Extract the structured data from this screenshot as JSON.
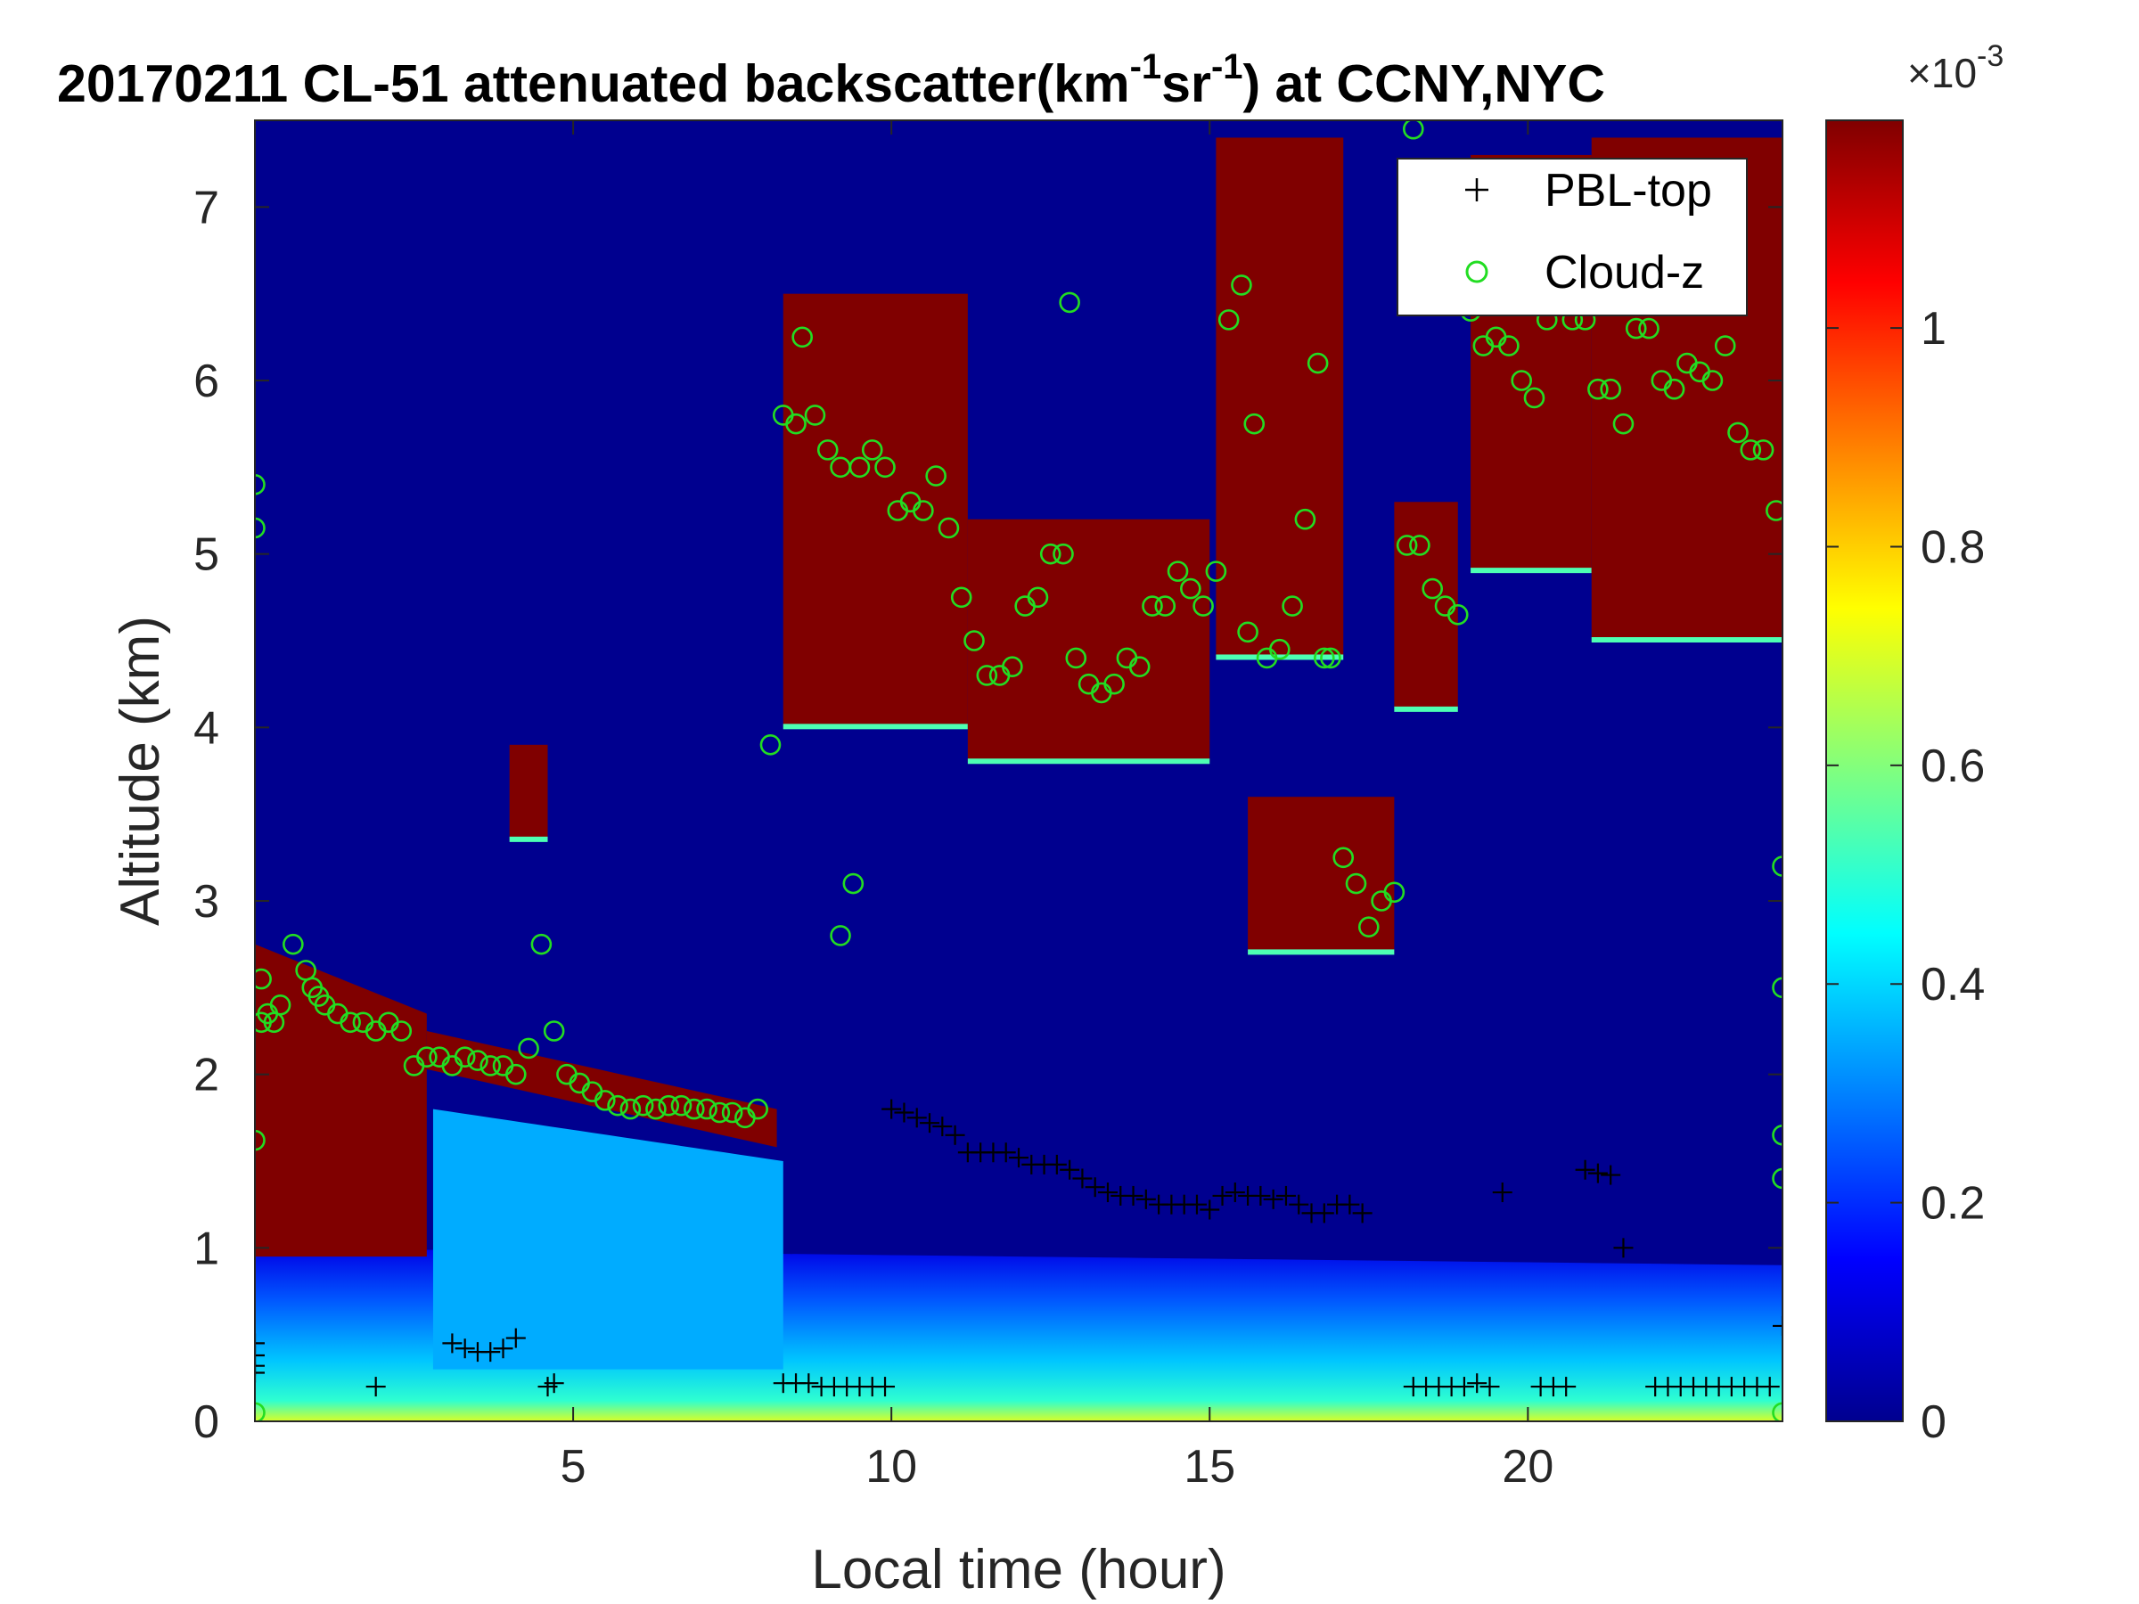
{
  "chart_data": {
    "type": "heatmap",
    "title": "20170211  CL-51 attenuated backscatter(km-1sr-1) at CCNY,NYC",
    "title_parts": {
      "prefix": "20170211  CL-51 attenuated backscatter(km",
      "exp1": "-1",
      "mid": "sr",
      "exp2": "-1",
      "suffix": ") at CCNY,NYC"
    },
    "xlabel": "Local time (hour)",
    "ylabel": "Altitude (km)",
    "xlim": [
      0,
      24
    ],
    "ylim": [
      0,
      7.5
    ],
    "xticks": [
      5,
      10,
      15,
      20
    ],
    "yticks": [
      0,
      1,
      2,
      3,
      4,
      5,
      6,
      7
    ],
    "colorbar": {
      "colormap": "jet",
      "range": [
        0,
        0.00119
      ],
      "tick_values": [
        0,
        0.2,
        0.4,
        0.6,
        0.8,
        1
      ],
      "tick_labels": [
        "0",
        "0.2",
        "0.4",
        "0.6",
        "0.8",
        "1"
      ],
      "multiplier_base": "×10",
      "multiplier_exp": "-3"
    },
    "legend": {
      "placement": "top-right",
      "entries": [
        {
          "label": "PBL-top",
          "marker": "+",
          "color": "#000000"
        },
        {
          "label": "Cloud-z",
          "marker": "o",
          "color": "#22dd22"
        }
      ]
    },
    "backscatter_regions": [
      {
        "kind": "surface_layer",
        "x": [
          0,
          24
        ],
        "top_km": [
          1.0,
          0.9
        ],
        "peak_level": 0.7
      },
      {
        "kind": "mixed_layer_aerosol",
        "x": [
          2.8,
          8.3
        ],
        "bottom_km": 0.3,
        "top_km": [
          1.8,
          1.5
        ],
        "level": 0.35
      },
      {
        "kind": "residual_layer",
        "x": [
          0,
          2.7
        ],
        "bottom_km": 0.95,
        "top_km": [
          2.75,
          2.35
        ],
        "level": 1.2
      },
      {
        "kind": "aerosol_layer_top",
        "x": [
          2.7,
          8.2
        ],
        "top_km": [
          2.25,
          1.8
        ],
        "level": 1.2
      },
      {
        "kind": "cloud",
        "x": [
          8.3,
          11.2
        ],
        "base_km": 4.0,
        "top_km": 6.5,
        "level": 1.2
      },
      {
        "kind": "cloud",
        "x": [
          11.2,
          15.0
        ],
        "base_km": 3.8,
        "top_km": 5.2,
        "level": 1.2
      },
      {
        "kind": "cloud",
        "x": [
          15.1,
          17.1
        ],
        "base_km": 4.4,
        "top_km": 7.4,
        "level": 1.2
      },
      {
        "kind": "cloud",
        "x": [
          15.6,
          17.9
        ],
        "base_km": 2.7,
        "top_km": 3.6,
        "level": 1.2
      },
      {
        "kind": "cloud",
        "x": [
          17.9,
          18.9
        ],
        "base_km": 4.1,
        "top_km": 5.3,
        "level": 1.2
      },
      {
        "kind": "cloud",
        "x": [
          19.1,
          21.0
        ],
        "base_km": 4.9,
        "top_km": 7.3,
        "level": 1.2
      },
      {
        "kind": "cloud",
        "x": [
          21.0,
          24.0
        ],
        "base_km": 4.5,
        "top_km": 7.4,
        "level": 1.2
      },
      {
        "kind": "cloud",
        "x": [
          4.0,
          4.6
        ],
        "base_km": 3.35,
        "top_km": 3.9,
        "level": 1.2
      }
    ],
    "series": [
      {
        "name": "PBL-top",
        "marker": "+",
        "x": [
          0.0,
          0.0,
          0.0,
          0.0,
          1.9,
          3.1,
          3.3,
          3.5,
          3.7,
          3.9,
          4.1,
          4.6,
          4.7,
          8.3,
          8.5,
          8.7,
          8.9,
          9.1,
          9.3,
          9.5,
          9.7,
          9.9,
          10.0,
          10.2,
          10.4,
          10.6,
          10.8,
          11.0,
          11.2,
          11.4,
          11.6,
          11.8,
          12.0,
          12.2,
          12.4,
          12.6,
          12.8,
          13.0,
          13.2,
          13.4,
          13.6,
          13.8,
          14.0,
          14.2,
          14.4,
          14.6,
          14.8,
          15.0,
          15.2,
          15.4,
          15.6,
          15.8,
          16.0,
          16.2,
          16.4,
          16.6,
          16.8,
          17.0,
          17.2,
          17.4,
          18.2,
          18.4,
          18.6,
          18.8,
          19.0,
          19.2,
          19.4,
          19.6,
          20.2,
          20.4,
          20.6,
          20.9,
          21.1,
          21.3,
          21.5,
          22.0,
          22.2,
          22.4,
          22.6,
          22.8,
          23.0,
          23.2,
          23.4,
          23.6,
          23.8,
          24.0
        ],
        "y": [
          0.45,
          0.38,
          0.32,
          0.28,
          0.2,
          0.45,
          0.42,
          0.4,
          0.4,
          0.42,
          0.48,
          0.2,
          0.22,
          0.22,
          0.22,
          0.22,
          0.2,
          0.2,
          0.2,
          0.2,
          0.2,
          0.2,
          1.8,
          1.78,
          1.75,
          1.72,
          1.7,
          1.65,
          1.55,
          1.55,
          1.55,
          1.55,
          1.52,
          1.48,
          1.48,
          1.48,
          1.45,
          1.4,
          1.35,
          1.32,
          1.3,
          1.3,
          1.28,
          1.25,
          1.25,
          1.25,
          1.25,
          1.22,
          1.3,
          1.32,
          1.3,
          1.3,
          1.28,
          1.3,
          1.25,
          1.2,
          1.2,
          1.25,
          1.25,
          1.2,
          0.2,
          0.2,
          0.2,
          0.2,
          0.2,
          0.22,
          0.2,
          1.32,
          0.2,
          0.2,
          0.2,
          1.45,
          1.43,
          1.42,
          1.0,
          0.2,
          0.2,
          0.2,
          0.2,
          0.2,
          0.2,
          0.2,
          0.2,
          0.2,
          0.2,
          0.55
        ]
      },
      {
        "name": "Cloud-z",
        "marker": "o",
        "x": [
          0.0,
          0.0,
          0.1,
          0.1,
          0.2,
          0.3,
          0.4,
          0.6,
          0.8,
          0.9,
          1.0,
          1.1,
          1.3,
          1.5,
          1.7,
          1.9,
          2.1,
          2.3,
          2.5,
          2.7,
          2.9,
          3.1,
          3.3,
          3.5,
          3.7,
          3.9,
          4.1,
          4.3,
          4.5,
          4.7,
          4.9,
          5.1,
          5.3,
          5.5,
          5.7,
          5.9,
          6.1,
          6.3,
          6.5,
          6.7,
          6.9,
          7.1,
          7.3,
          7.5,
          7.7,
          7.9,
          8.1,
          8.3,
          8.5,
          8.6,
          8.8,
          9.0,
          9.2,
          9.5,
          9.7,
          9.9,
          10.1,
          10.3,
          10.5,
          10.7,
          10.9,
          11.1,
          11.3,
          11.5,
          11.7,
          11.9,
          12.1,
          12.3,
          12.5,
          12.7,
          12.9,
          13.1,
          13.3,
          13.5,
          13.7,
          13.9,
          14.1,
          14.3,
          14.5,
          14.7,
          14.9,
          15.1,
          15.3,
          15.5,
          15.7,
          15.9,
          16.1,
          16.3,
          16.5,
          16.7,
          16.9,
          17.1,
          17.3,
          17.5,
          17.7,
          17.9,
          18.1,
          18.3,
          18.5,
          18.7,
          18.9,
          19.1,
          19.3,
          19.5,
          19.7,
          19.9,
          20.1,
          20.3,
          20.5,
          20.7,
          20.9,
          21.1,
          21.3,
          21.5,
          21.7,
          21.9,
          22.1,
          22.3,
          22.5,
          22.7,
          22.9,
          23.1,
          23.3,
          23.5,
          23.7,
          23.9,
          9.2,
          9.4,
          12.8,
          15.6,
          16.8,
          18.2,
          0.0,
          0.0,
          24.0,
          24.0,
          24.0,
          24.0,
          24.0
        ],
        "y": [
          5.4,
          5.15,
          2.55,
          2.3,
          2.35,
          2.3,
          2.4,
          2.75,
          2.6,
          2.5,
          2.45,
          2.4,
          2.35,
          2.3,
          2.3,
          2.25,
          2.3,
          2.25,
          2.05,
          2.1,
          2.1,
          2.05,
          2.1,
          2.08,
          2.05,
          2.05,
          2.0,
          2.15,
          2.75,
          2.25,
          2.0,
          1.95,
          1.9,
          1.85,
          1.82,
          1.8,
          1.82,
          1.8,
          1.82,
          1.82,
          1.8,
          1.8,
          1.78,
          1.78,
          1.75,
          1.8,
          3.9,
          5.8,
          5.75,
          6.25,
          5.8,
          5.6,
          5.5,
          5.5,
          5.6,
          5.5,
          5.25,
          5.3,
          5.25,
          5.45,
          5.15,
          4.75,
          4.5,
          4.3,
          4.3,
          4.35,
          4.7,
          4.75,
          5.0,
          5.0,
          4.4,
          4.25,
          4.2,
          4.25,
          4.4,
          4.35,
          4.7,
          4.7,
          4.9,
          4.8,
          4.7,
          4.9,
          6.35,
          6.55,
          5.75,
          4.4,
          4.45,
          4.7,
          5.2,
          6.1,
          4.4,
          3.25,
          3.1,
          2.85,
          3.0,
          3.05,
          5.05,
          5.05,
          4.8,
          4.7,
          4.65,
          6.4,
          6.2,
          6.25,
          6.2,
          6.0,
          5.9,
          6.35,
          6.45,
          6.35,
          6.35,
          5.95,
          5.95,
          5.75,
          6.3,
          6.3,
          6.0,
          5.95,
          6.1,
          6.05,
          6.0,
          6.2,
          5.7,
          5.6,
          5.6,
          5.25,
          2.8,
          3.1,
          6.45,
          4.55,
          4.4,
          7.45,
          1.62,
          0.05,
          3.2,
          2.5,
          1.65,
          1.4,
          0.05
        ]
      }
    ]
  }
}
